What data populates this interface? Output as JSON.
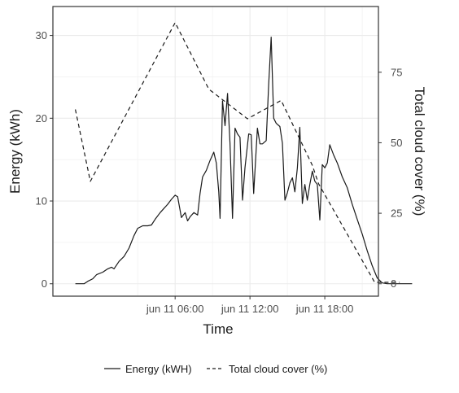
{
  "chart_data": {
    "type": "line",
    "xlabel": "Time",
    "ylabel": "Energy (kWh)",
    "y2label": "Total cloud cover (%)",
    "x_units": "hours since 2024-06-11 00:00 (axis prints day/time)",
    "xlim": [
      -3.8,
      22.3
    ],
    "ylim": [
      -1.5,
      33.5
    ],
    "y2lim": [
      -4.4,
      98.3
    ],
    "x_ticks": [
      {
        "value": 6,
        "label": "jun 11 06:00"
      },
      {
        "value": 12,
        "label": "jun 11 12:00"
      },
      {
        "value": 18,
        "label": "jun 11 18:00"
      }
    ],
    "y_ticks": [
      0,
      10,
      20,
      30
    ],
    "y2_ticks": [
      0,
      25,
      50,
      75
    ],
    "grid": true,
    "legend_position": "bottom",
    "series": [
      {
        "name": "Energy (kWH)",
        "axis": "left",
        "linestyle": "solid",
        "points": [
          [
            -2.0,
            0.0
          ],
          [
            -1.3,
            0.0
          ],
          [
            -1.0,
            0.3
          ],
          [
            -0.6,
            0.6
          ],
          [
            -0.3,
            1.1
          ],
          [
            0.2,
            1.4
          ],
          [
            0.6,
            1.8
          ],
          [
            0.9,
            2.0
          ],
          [
            1.1,
            1.8
          ],
          [
            1.5,
            2.7
          ],
          [
            1.9,
            3.3
          ],
          [
            2.3,
            4.3
          ],
          [
            2.7,
            5.8
          ],
          [
            3.0,
            6.7
          ],
          [
            3.4,
            7.0
          ],
          [
            3.8,
            7.0
          ],
          [
            4.1,
            7.1
          ],
          [
            4.4,
            7.8
          ],
          [
            4.8,
            8.6
          ],
          [
            5.1,
            9.1
          ],
          [
            5.4,
            9.6
          ],
          [
            5.7,
            10.2
          ],
          [
            6.0,
            10.7
          ],
          [
            6.2,
            10.5
          ],
          [
            6.5,
            8.0
          ],
          [
            6.8,
            8.6
          ],
          [
            7.0,
            7.6
          ],
          [
            7.2,
            8.1
          ],
          [
            7.5,
            8.6
          ],
          [
            7.8,
            8.3
          ],
          [
            8.0,
            10.9
          ],
          [
            8.2,
            12.9
          ],
          [
            8.5,
            13.7
          ],
          [
            8.8,
            14.9
          ],
          [
            9.1,
            15.9
          ],
          [
            9.3,
            14.6
          ],
          [
            9.5,
            11.1
          ],
          [
            9.6,
            7.9
          ],
          [
            9.8,
            22.1
          ],
          [
            10.0,
            19.1
          ],
          [
            10.2,
            23.0
          ],
          [
            10.4,
            17.0
          ],
          [
            10.6,
            7.9
          ],
          [
            10.8,
            18.8
          ],
          [
            11.0,
            18.1
          ],
          [
            11.2,
            17.7
          ],
          [
            11.4,
            10.1
          ],
          [
            11.6,
            14.0
          ],
          [
            11.9,
            18.1
          ],
          [
            12.1,
            18.0
          ],
          [
            12.3,
            10.9
          ],
          [
            12.6,
            18.8
          ],
          [
            12.8,
            16.9
          ],
          [
            13.0,
            16.9
          ],
          [
            13.3,
            17.3
          ],
          [
            13.5,
            24.0
          ],
          [
            13.7,
            29.8
          ],
          [
            13.9,
            20.0
          ],
          [
            14.1,
            19.4
          ],
          [
            14.4,
            19.0
          ],
          [
            14.6,
            17.0
          ],
          [
            14.8,
            10.1
          ],
          [
            15.0,
            11.0
          ],
          [
            15.2,
            12.2
          ],
          [
            15.4,
            12.8
          ],
          [
            15.6,
            11.1
          ],
          [
            15.8,
            14.0
          ],
          [
            16.0,
            18.9
          ],
          [
            16.2,
            9.7
          ],
          [
            16.4,
            12.0
          ],
          [
            16.6,
            10.1
          ],
          [
            16.8,
            12.0
          ],
          [
            17.0,
            13.6
          ],
          [
            17.2,
            12.4
          ],
          [
            17.4,
            12.0
          ],
          [
            17.6,
            7.7
          ],
          [
            17.8,
            14.4
          ],
          [
            18.0,
            14.0
          ],
          [
            18.2,
            14.6
          ],
          [
            18.4,
            16.8
          ],
          [
            18.7,
            15.6
          ],
          [
            19.0,
            14.6
          ],
          [
            19.4,
            12.9
          ],
          [
            19.8,
            11.6
          ],
          [
            20.2,
            9.6
          ],
          [
            20.6,
            7.8
          ],
          [
            21.0,
            6.0
          ],
          [
            21.4,
            4.0
          ],
          [
            21.8,
            2.2
          ],
          [
            22.2,
            0.7
          ],
          [
            22.6,
            0.1
          ],
          [
            23.0,
            0.0
          ],
          [
            24.0,
            0.0
          ],
          [
            25.0,
            0.0
          ]
        ]
      },
      {
        "name": "Total cloud cover (%)",
        "axis": "right",
        "linestyle": "dashed",
        "points": [
          [
            -2.0,
            61.8
          ],
          [
            -0.8,
            36.3
          ],
          [
            6.0,
            92.6
          ],
          [
            8.7,
            69.0
          ],
          [
            11.8,
            58.5
          ],
          [
            14.5,
            65.0
          ],
          [
            17.0,
            42.0
          ],
          [
            17.5,
            35.5
          ],
          [
            22.0,
            0.5
          ],
          [
            24.0,
            0.5
          ]
        ]
      }
    ]
  }
}
